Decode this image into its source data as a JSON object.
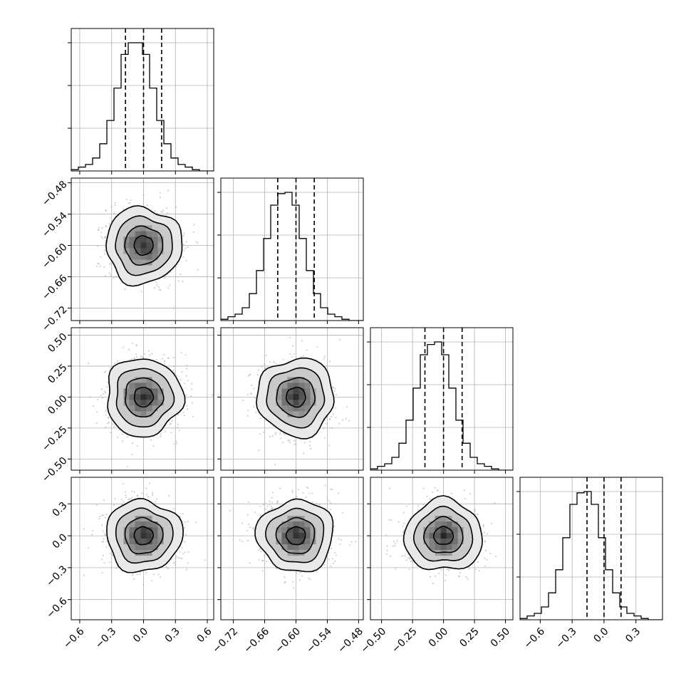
{
  "chart_data": {
    "type": "corner",
    "params": [
      {
        "range": [
          -0.68,
          0.66
        ],
        "median": 0.0,
        "q16": -0.17,
        "q84": 0.17,
        "sigma": 0.17,
        "ticks": [
          -0.6,
          -0.3,
          0.0,
          0.3,
          0.6
        ],
        "tick_labels": [
          "−0.6",
          "−0.3",
          "0.0",
          "0.3",
          "0.6"
        ]
      },
      {
        "range": [
          -0.744,
          -0.471
        ],
        "median": -0.6,
        "q16": -0.635,
        "q84": -0.565,
        "sigma": 0.035,
        "ticks": [
          -0.72,
          -0.66,
          -0.6,
          -0.54,
          -0.48
        ],
        "tick_labels": [
          "−0.72",
          "−0.66",
          "−0.60",
          "−0.54",
          "−0.48"
        ]
      },
      {
        "range": [
          -0.59,
          0.56
        ],
        "median": 0.0,
        "q16": -0.15,
        "q84": 0.15,
        "sigma": 0.15,
        "ticks": [
          -0.5,
          -0.25,
          0.0,
          0.25,
          0.5
        ],
        "tick_labels": [
          "−0.50",
          "−0.25",
          "0.00",
          "0.25",
          "0.50"
        ]
      },
      {
        "range": [
          -0.79,
          0.55
        ],
        "median": 0.0,
        "q16": -0.16,
        "q84": 0.16,
        "sigma": 0.16,
        "ticks": [
          -0.6,
          -0.3,
          0.0,
          0.3
        ],
        "tick_labels": [
          "−0.6",
          "−0.3",
          "0.0",
          "0.3"
        ]
      }
    ],
    "hist_bins": 20,
    "hist_counts": [
      [
        1,
        3,
        5,
        10,
        21,
        39,
        64,
        90,
        99,
        99,
        90,
        64,
        39,
        21,
        10,
        5,
        3,
        1,
        0,
        0
      ],
      [
        1,
        3,
        5,
        10,
        21,
        39,
        64,
        90,
        99,
        100,
        90,
        64,
        39,
        21,
        10,
        5,
        3,
        1,
        0,
        0
      ],
      [
        1,
        3,
        5,
        10,
        21,
        39,
        64,
        90,
        98,
        100,
        90,
        64,
        39,
        21,
        10,
        5,
        3,
        1,
        0,
        0
      ],
      [
        1,
        3,
        5,
        10,
        21,
        39,
        64,
        90,
        99,
        100,
        90,
        64,
        39,
        21,
        10,
        5,
        3,
        1,
        0,
        0
      ]
    ],
    "contour_levels_sigma": [
      0.5,
      1.0,
      1.5,
      2.0
    ],
    "grid": true,
    "show_quantiles": true
  }
}
